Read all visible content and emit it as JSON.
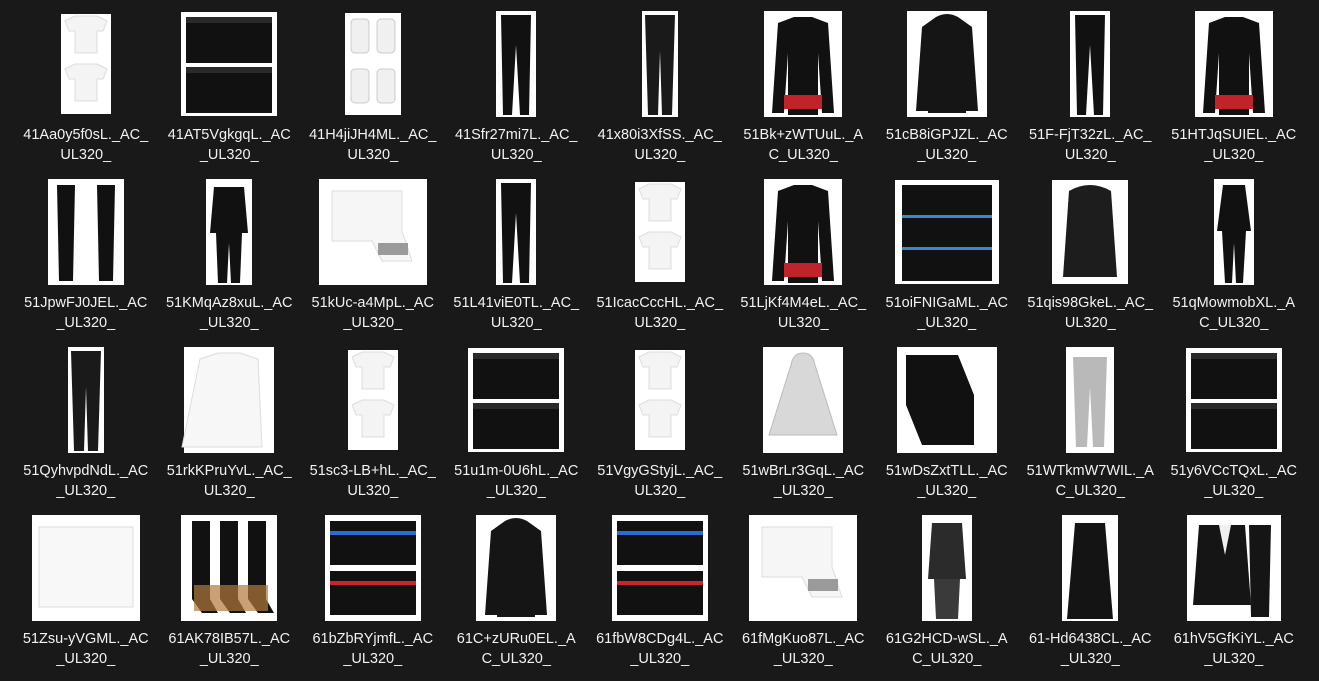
{
  "files": [
    {
      "name": "41Aa0y5f0sL._AC_UL320_",
      "kind": "tshirts-white"
    },
    {
      "name": "41AT5VgkgqL._AC_UL320_",
      "kind": "boxers-black"
    },
    {
      "name": "41H4jiJH4ML._AC_UL320_",
      "kind": "tanks-white"
    },
    {
      "name": "41Sfr27mi7L._AC_UL320_",
      "kind": "tights-black"
    },
    {
      "name": "41x80i3XfSS._AC_UL320_",
      "kind": "pants-black"
    },
    {
      "name": "51Bk+zWTUuL._AC_UL320_",
      "kind": "longsleeve-black"
    },
    {
      "name": "51cB8iGPJZL._AC_UL320_",
      "kind": "hoodie-black"
    },
    {
      "name": "51F-FjT32zL._AC_UL320_",
      "kind": "tights-black"
    },
    {
      "name": "51HTJqSUIEL._AC_UL320_",
      "kind": "longsleeve-black"
    },
    {
      "name": "51JpwFJ0JEL._AC_UL320_",
      "kind": "sleeves-black"
    },
    {
      "name": "51KMqAz8xuL._AC_UL320_",
      "kind": "tracksuit-black"
    },
    {
      "name": "51kUc-a4MpL._AC_UL320_",
      "kind": "socks-white"
    },
    {
      "name": "51L41viE0TL._AC_UL320_",
      "kind": "tights-black"
    },
    {
      "name": "51IcacCccHL._AC_UL320_",
      "kind": "tshirts-white"
    },
    {
      "name": "51LjKf4M4eL._AC_UL320_",
      "kind": "longsleeve-black"
    },
    {
      "name": "51oiFNIGaML._AC_UL320_",
      "kind": "boxers-stack"
    },
    {
      "name": "51qis98GkeL._AC_UL320_",
      "kind": "jacket-black"
    },
    {
      "name": "51qMowmobXL._AC_UL320_",
      "kind": "baselayer-black"
    },
    {
      "name": "51QyhvpdNdL._AC_UL320_",
      "kind": "pants-black"
    },
    {
      "name": "51rkKPruYvL._AC_UL320_",
      "kind": "shirt-white"
    },
    {
      "name": "51sc3-LB+hL._AC_UL320_",
      "kind": "tshirts-white"
    },
    {
      "name": "51u1m-0U6hL._AC_UL320_",
      "kind": "boxers-black"
    },
    {
      "name": "51VgyGStyjL._AC_UL320_",
      "kind": "tshirts-white"
    },
    {
      "name": "51wBrLr3GqL._AC_UL320_",
      "kind": "poncho-clear"
    },
    {
      "name": "51wDsZxtTLL._AC_UL320_",
      "kind": "tshirts-black"
    },
    {
      "name": "51WTkmW7WIL._AC_UL320_",
      "kind": "joggers-grey"
    },
    {
      "name": "51y6VCcTQxL._AC_UL320_",
      "kind": "boxers-black"
    },
    {
      "name": "51Zsu-yVGML._AC_UL320_",
      "kind": "briefs-white"
    },
    {
      "name": "61AK78IB57L._AC_UL320_",
      "kind": "compression-socks"
    },
    {
      "name": "61bZbRYjmfL._AC_UL320_",
      "kind": "boxers-color"
    },
    {
      "name": "61C+zURu0EL._AC_UL320_",
      "kind": "hoodie-black"
    },
    {
      "name": "61fbW8CDg4L._AC_UL320_",
      "kind": "boxers-color"
    },
    {
      "name": "61fMgKuo87L._AC_UL320_",
      "kind": "socks-white"
    },
    {
      "name": "61G2HCD-wSL._AC_UL320_",
      "kind": "vest-black"
    },
    {
      "name": "61-Hd6438CL._AC_UL320_",
      "kind": "coat-black"
    },
    {
      "name": "61hV5GfKiYL._AC_UL320_",
      "kind": "suit-black"
    }
  ]
}
